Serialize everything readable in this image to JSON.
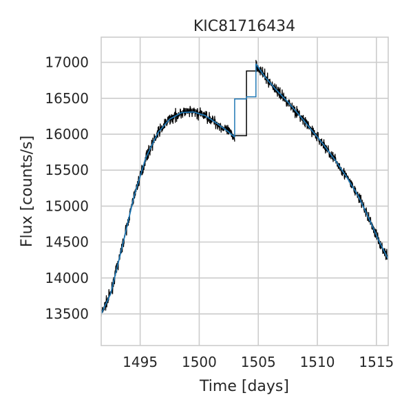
{
  "chart_data": {
    "type": "line",
    "title": "KIC81716434",
    "xlabel": "Time [days]",
    "ylabel": "Flux [counts/s]",
    "xlim": [
      1491.7,
      1516.0
    ],
    "ylim": [
      13060,
      17350
    ],
    "xticks": [
      1495,
      1500,
      1505,
      1510,
      1515
    ],
    "yticks": [
      13500,
      14000,
      14500,
      15000,
      15500,
      16000,
      16500,
      17000
    ],
    "grid": true,
    "series": [
      {
        "style": "noisy step",
        "color": "#000000",
        "x": [
          1491.7,
          1492.5,
          1493.5,
          1494.5,
          1495.5,
          1496.5,
          1497.5,
          1498.5,
          1499.5,
          1500.5,
          1501.5,
          1502.5,
          1503.0
        ],
        "y": [
          13500,
          13780,
          14450,
          15150,
          15680,
          16020,
          16210,
          16300,
          16310,
          16260,
          16150,
          16030,
          15960
        ],
        "steps": [
          {
            "x0": 1503.0,
            "x1": 1504.0,
            "y": 15980
          },
          {
            "x0": 1504.0,
            "x1": 1504.8,
            "y": 16880
          }
        ],
        "x2": [
          1504.8,
          1505.5,
          1506.5,
          1507.5,
          1508.5,
          1509.5,
          1510.5,
          1511.5,
          1512.5,
          1513.5,
          1514.5,
          1515.2,
          1516.0
        ],
        "y2": [
          16980,
          16810,
          16620,
          16450,
          16260,
          16060,
          15860,
          15640,
          15400,
          15130,
          14780,
          14520,
          14260
        ]
      },
      {
        "style": "smooth trend step",
        "color": "#1f77b4",
        "x": [
          1491.7,
          1492.5,
          1493.5,
          1494.5,
          1495.5,
          1496.5,
          1497.5,
          1498.5,
          1499.5,
          1500.5,
          1501.5,
          1502.5,
          1503.0
        ],
        "y": [
          13500,
          13780,
          14450,
          15150,
          15680,
          16020,
          16210,
          16300,
          16310,
          16260,
          16150,
          16030,
          15960
        ],
        "steps": [
          {
            "x0": 1503.0,
            "x1": 1504.0,
            "y": 16490
          },
          {
            "x0": 1504.0,
            "x1": 1504.8,
            "y": 16520
          }
        ],
        "x2": [
          1504.8,
          1505.5,
          1506.5,
          1507.5,
          1508.5,
          1509.5,
          1510.5,
          1511.5,
          1512.5,
          1513.5,
          1514.5,
          1515.2,
          1516.0
        ],
        "y2": [
          16980,
          16810,
          16620,
          16450,
          16260,
          16060,
          15860,
          15640,
          15400,
          15130,
          14780,
          14520,
          14260
        ]
      }
    ]
  }
}
